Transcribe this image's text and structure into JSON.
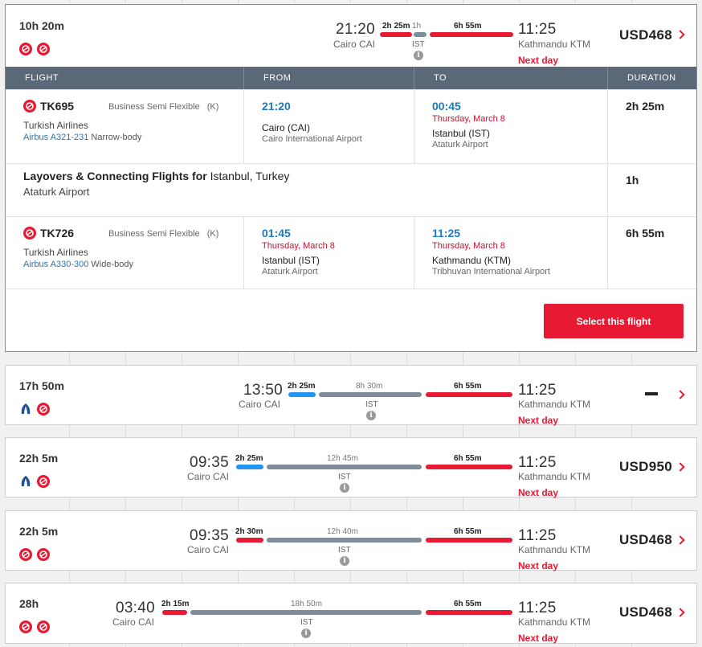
{
  "colors": {
    "accent": "#e81932",
    "blue_segment": "#2196f3",
    "gray_segment": "#7f8c99",
    "header_bg": "#5b6878"
  },
  "icons": {
    "turkish": "turkish-airlines-logo",
    "egyptair": "egyptair-logo",
    "chevron": "chevron-right-icon",
    "info": "info-icon"
  },
  "results": [
    {
      "total": "10h 20m",
      "dep_time": "21:20",
      "dep_city": "Cairo CAI",
      "arr_time": "11:25",
      "arr_city": "Kathmandu KTM",
      "next_day": "Next day",
      "seg1": "2h 25m",
      "layover": "1h",
      "seg2": "6h 55m",
      "stop": "IST",
      "price": "USD468"
    },
    {
      "total": "17h 50m",
      "dep_time": "13:50",
      "dep_city": "Cairo CAI",
      "arr_time": "11:25",
      "arr_city": "Kathmandu KTM",
      "next_day": "Next day",
      "seg1": "2h 25m",
      "layover": "8h 30m",
      "seg2": "6h 55m",
      "stop": "IST",
      "price": ""
    },
    {
      "total": "22h 5m",
      "dep_time": "09:35",
      "dep_city": "Cairo CAI",
      "arr_time": "11:25",
      "arr_city": "Kathmandu KTM",
      "next_day": "Next day",
      "seg1": "2h 25m",
      "layover": "12h 45m",
      "seg2": "6h 55m",
      "stop": "IST",
      "price": "USD950"
    },
    {
      "total": "22h 5m",
      "dep_time": "09:35",
      "dep_city": "Cairo CAI",
      "arr_time": "11:25",
      "arr_city": "Kathmandu KTM",
      "next_day": "Next day",
      "seg1": "2h 30m",
      "layover": "12h 40m",
      "seg2": "6h 55m",
      "stop": "IST",
      "price": "USD468"
    },
    {
      "total": "28h",
      "dep_time": "03:40",
      "dep_city": "Cairo CAI",
      "arr_time": "11:25",
      "arr_city": "Kathmandu KTM",
      "next_day": "Next day",
      "seg1": "2h 15m",
      "layover": "18h 50m",
      "seg2": "6h 55m",
      "stop": "IST",
      "price": "USD468"
    }
  ],
  "details": {
    "headers": {
      "flight": "FLIGHT",
      "from": "FROM",
      "to": "TO",
      "duration": "DURATION"
    },
    "leg1": {
      "flight_no": "TK695",
      "fare": "Business Semi Flexible",
      "class": "(K)",
      "airline": "Turkish Airlines",
      "aircraft_model": "Airbus A321-231",
      "aircraft_body": "Narrow-body",
      "from_time": "21:20",
      "from_date": "",
      "from_city": "Cairo (CAI)",
      "from_airport": "Cairo International Airport",
      "to_time": "00:45",
      "to_date": "Thursday, March 8",
      "to_city": "Istanbul (IST)",
      "to_airport": "Ataturk Airport",
      "duration": "2h 25m"
    },
    "layover": {
      "title_bold": "Layovers & Connecting Flights for",
      "title_place": "Istanbul, Turkey",
      "airport": "Ataturk Airport",
      "duration": "1h"
    },
    "leg2": {
      "flight_no": "TK726",
      "fare": "Business Semi Flexible",
      "class": "(K)",
      "airline": "Turkish Airlines",
      "aircraft_model": "Airbus A330-300",
      "aircraft_body": "Wide-body",
      "from_time": "01:45",
      "from_date": "Thursday, March 8",
      "from_city": "Istanbul (IST)",
      "from_airport": "Ataturk Airport",
      "to_time": "11:25",
      "to_date": "Thursday, March 8",
      "to_city": "Kathmandu (KTM)",
      "to_airport": "Tribhuvan International Airport",
      "duration": "6h 55m"
    },
    "select_label": "Select this flight"
  }
}
